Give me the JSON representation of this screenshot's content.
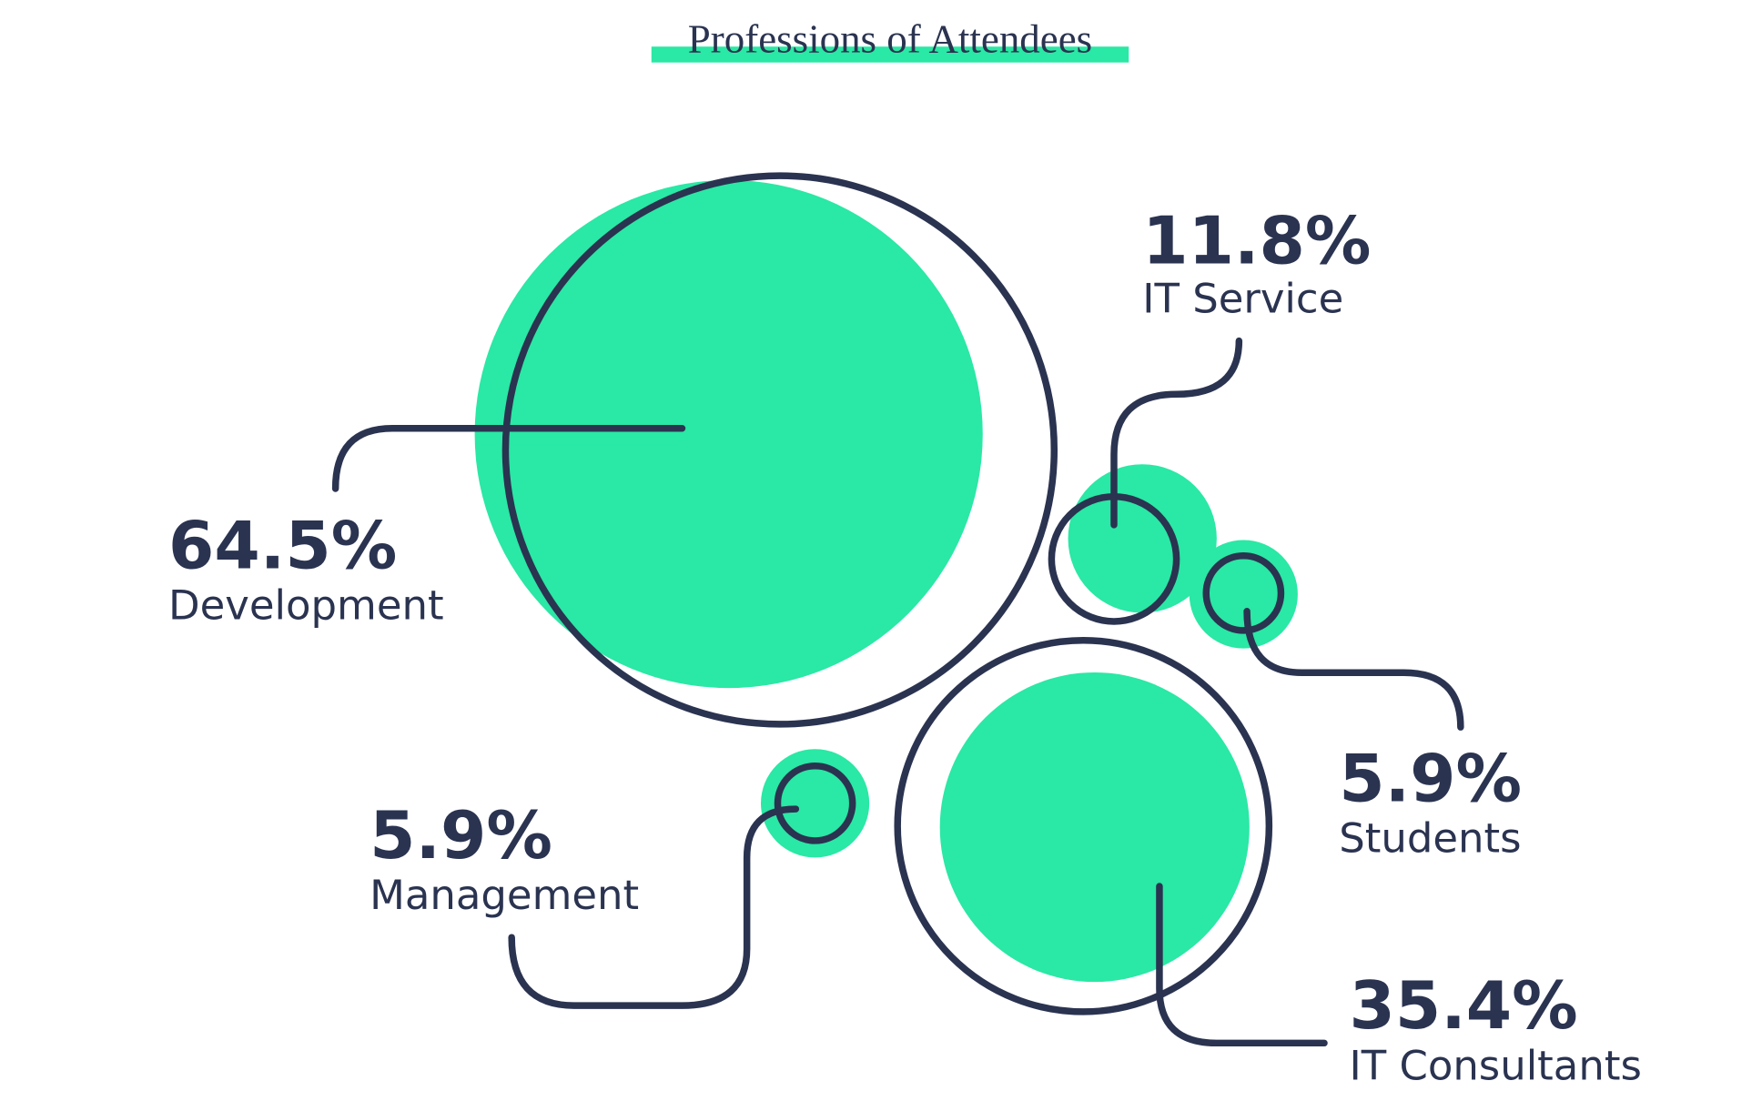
{
  "chart_data": {
    "type": "bubble",
    "title": "Professions of Attendees",
    "categories": [
      "Development",
      "IT Service",
      "Students",
      "Management",
      "IT Consultants"
    ],
    "values": [
      64.5,
      11.8,
      5.9,
      5.9,
      35.4
    ],
    "value_labels": [
      "64.5%",
      "11.8%",
      "5.9%",
      "5.9%",
      "35.4%"
    ],
    "color": "#2ae8a5",
    "outline_color": "#2a3350"
  }
}
